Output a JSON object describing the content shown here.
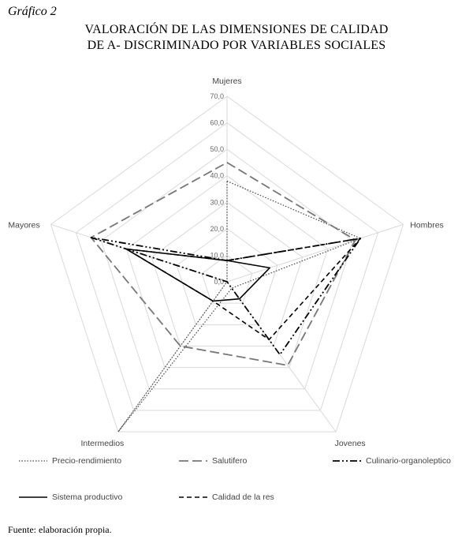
{
  "figure_label": "Gráfico 2",
  "source_note": "Fuente: elaboración propia.",
  "chart_data": {
    "type": "radar",
    "title": "VALORACIÓN DE LAS DIMENSIONES DE CALIDAD\nDE A- DISCRIMINADO POR VARIABLES SOCIALES",
    "title_lines": [
      "VALORACIÓN DE LAS DIMENSIONES DE CALIDAD",
      "DE A- DISCRIMINADO POR VARIABLES SOCIALES"
    ],
    "axes": [
      "Mujeres",
      "Hombres",
      "Jovenes",
      "Intermedios",
      "Mayores"
    ],
    "range": [
      0,
      70
    ],
    "ticks": [
      "0,0",
      "10,0",
      "20,0",
      "30,0",
      "40,0",
      "50,0",
      "60,0",
      "70,0"
    ],
    "grid": true,
    "legend_position": "bottom",
    "series": [
      {
        "name": "Precio-rendimiento",
        "values": [
          38,
          53,
          3,
          70,
          0
        ]
      },
      {
        "name": "Salutifero",
        "values": [
          45,
          51,
          39,
          30,
          54
        ]
      },
      {
        "name": "Culinario-organoleptico",
        "values": [
          8,
          53,
          34,
          0,
          54
        ]
      },
      {
        "name": "Sistema productivo",
        "values": [
          8,
          17,
          8,
          9,
          40
        ]
      },
      {
        "name": "Calidad de la res",
        "values": [
          8,
          53,
          27,
          9,
          40
        ]
      }
    ],
    "series_styles": [
      {
        "color": "#444444",
        "dash": "1.5,2",
        "width": 1.2
      },
      {
        "color": "#777777",
        "dash": "12,5",
        "width": 1.8
      },
      {
        "color": "#000000",
        "dash": "9,3,2,3,2,3",
        "width": 1.8
      },
      {
        "color": "#000000",
        "dash": "",
        "width": 1.6
      },
      {
        "color": "#000000",
        "dash": "6,4",
        "width": 1.6
      }
    ]
  }
}
